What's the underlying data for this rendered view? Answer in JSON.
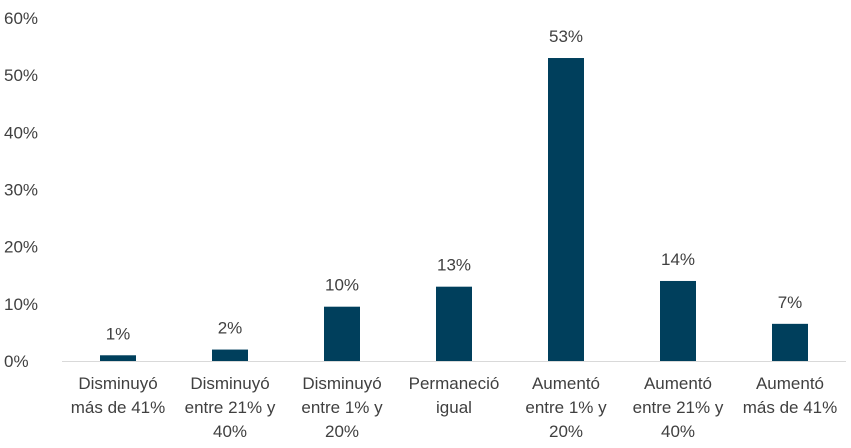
{
  "chart_data": {
    "type": "bar",
    "categories": [
      [
        "Disminuyó",
        "más de 41%"
      ],
      [
        "Disminuyó",
        "entre 21% y",
        "40%"
      ],
      [
        "Disminuyó",
        "entre 1% y",
        "20%"
      ],
      [
        "Permaneció",
        "igual"
      ],
      [
        "Aumentó",
        "entre 1% y",
        "20%"
      ],
      [
        "Aumentó",
        "entre 21% y",
        "40%"
      ],
      [
        "Aumentó",
        "más de 41%"
      ]
    ],
    "values": [
      1,
      2,
      9.5,
      13,
      53,
      14,
      6.5
    ],
    "data_labels": [
      "1%",
      "2%",
      "10%",
      "13%",
      "53%",
      "14%",
      "7%"
    ],
    "ylim": [
      0,
      60
    ],
    "yticks": [
      0,
      10,
      20,
      30,
      40,
      50,
      60
    ],
    "ytick_labels": [
      "0%",
      "10%",
      "20%",
      "30%",
      "40%",
      "50%",
      "60%"
    ],
    "title": "",
    "xlabel": "",
    "ylabel": "",
    "grid": false,
    "legend": "none",
    "bar_color": "#003f5c",
    "axis_color": "#d9d9d9"
  }
}
